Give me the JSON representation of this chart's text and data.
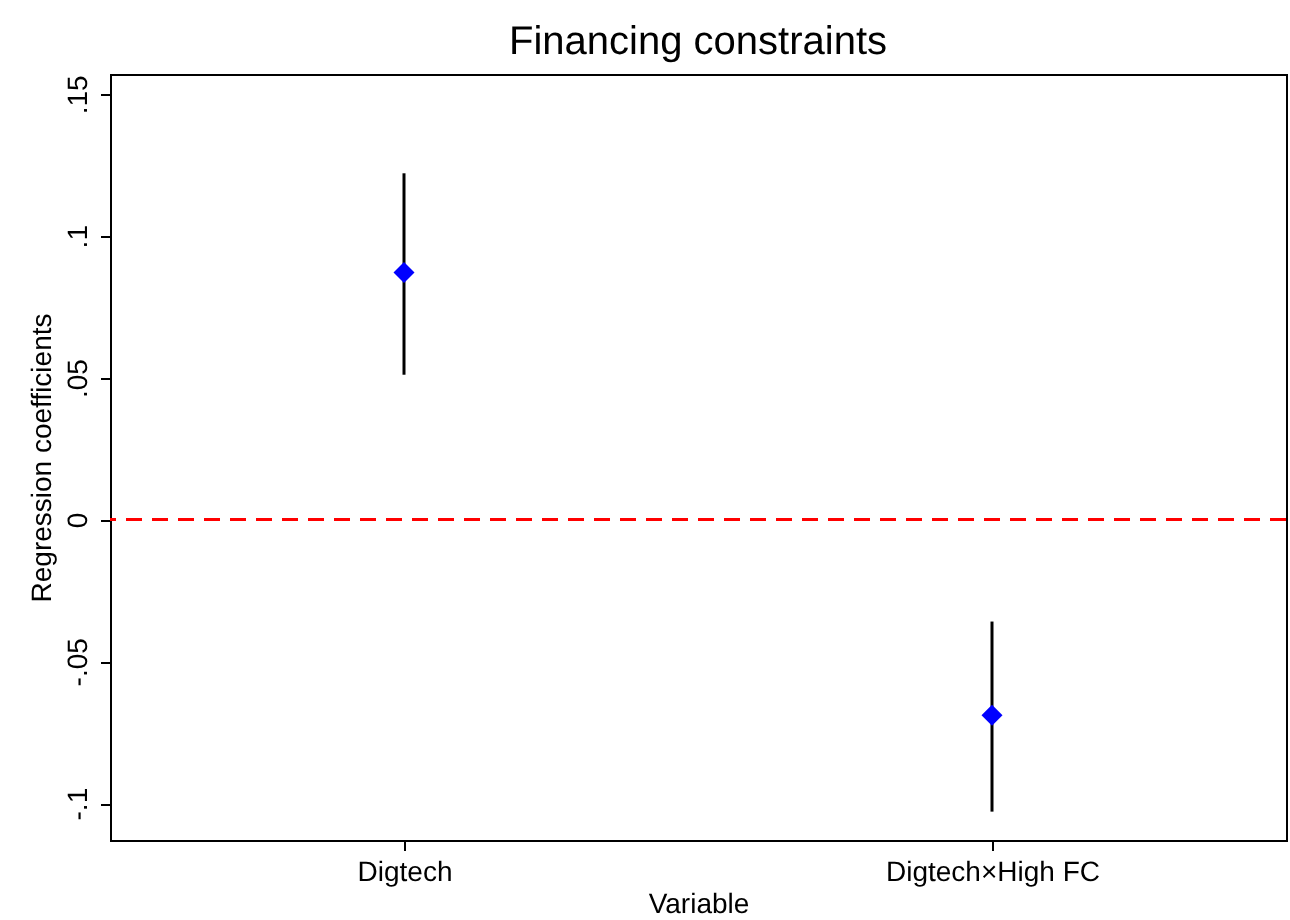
{
  "chart_data": {
    "type": "scatter",
    "title": "Financing constraints",
    "xlabel": "Variable",
    "ylabel": "Regression coefficients",
    "categories": [
      "Digtech",
      "Digtech×High FC"
    ],
    "series": [
      {
        "color": "#0000ff",
        "values": [
          0.087,
          -0.069
        ],
        "errors": [
          [
            0.051,
            0.122
          ],
          [
            -0.103,
            -0.036
          ]
        ]
      }
    ],
    "ylim": [
      -0.113,
      0.157
    ],
    "yticks": [
      {
        "value": -0.1,
        "label": "-.1"
      },
      {
        "value": -0.05,
        "label": "-.05"
      },
      {
        "value": 0,
        "label": "0"
      },
      {
        "value": 0.05,
        "label": ".05"
      },
      {
        "value": 0.1,
        "label": ".1"
      },
      {
        "value": 0.15,
        "label": ".15"
      }
    ],
    "marker": "diamond",
    "ref_lines": [
      {
        "axis": "y",
        "value": 0,
        "color": "#ff0000",
        "line_style": "dashed"
      }
    ]
  }
}
